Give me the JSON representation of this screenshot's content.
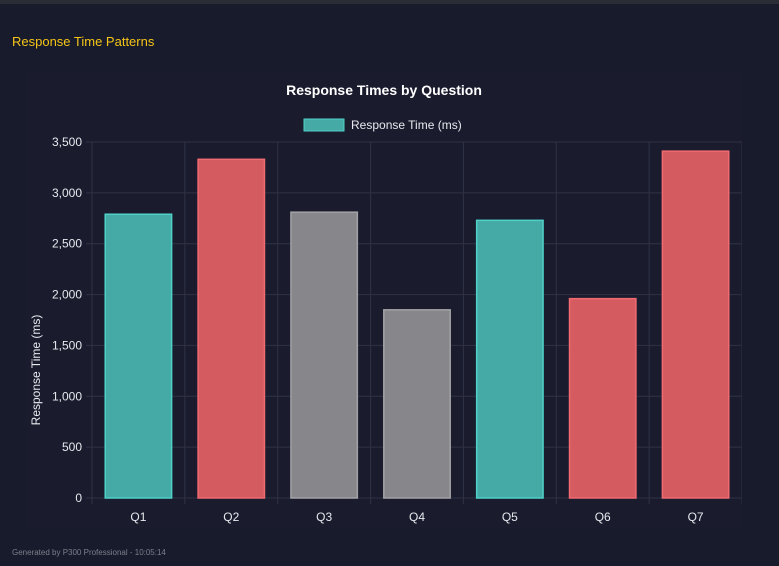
{
  "section": {
    "title": "Response Time Patterns"
  },
  "footer": {
    "text": "Generated by P300 Professional - 10:05:14"
  },
  "colors": {
    "teal": "#45aaa5",
    "red": "#d45c61",
    "gray": "#87878b",
    "title": "#f5c518"
  },
  "chart_data": {
    "type": "bar",
    "title": "Response Times by Question",
    "legend": {
      "label": "Response Time (ms)",
      "placement": "top"
    },
    "xlabel": "",
    "ylabel": "Response Time (ms)",
    "categories": [
      "Q1",
      "Q2",
      "Q3",
      "Q4",
      "Q5",
      "Q6",
      "Q7"
    ],
    "values": [
      2790,
      3330,
      2810,
      1850,
      2730,
      1960,
      3410
    ],
    "bar_colors": [
      "teal",
      "red",
      "gray",
      "gray",
      "teal",
      "red",
      "red"
    ],
    "ylim": [
      0,
      3500
    ],
    "yticks": [
      "0",
      "500",
      "1,000",
      "1,500",
      "2,000",
      "2,500",
      "3,000",
      "3,500"
    ],
    "grid": true
  }
}
